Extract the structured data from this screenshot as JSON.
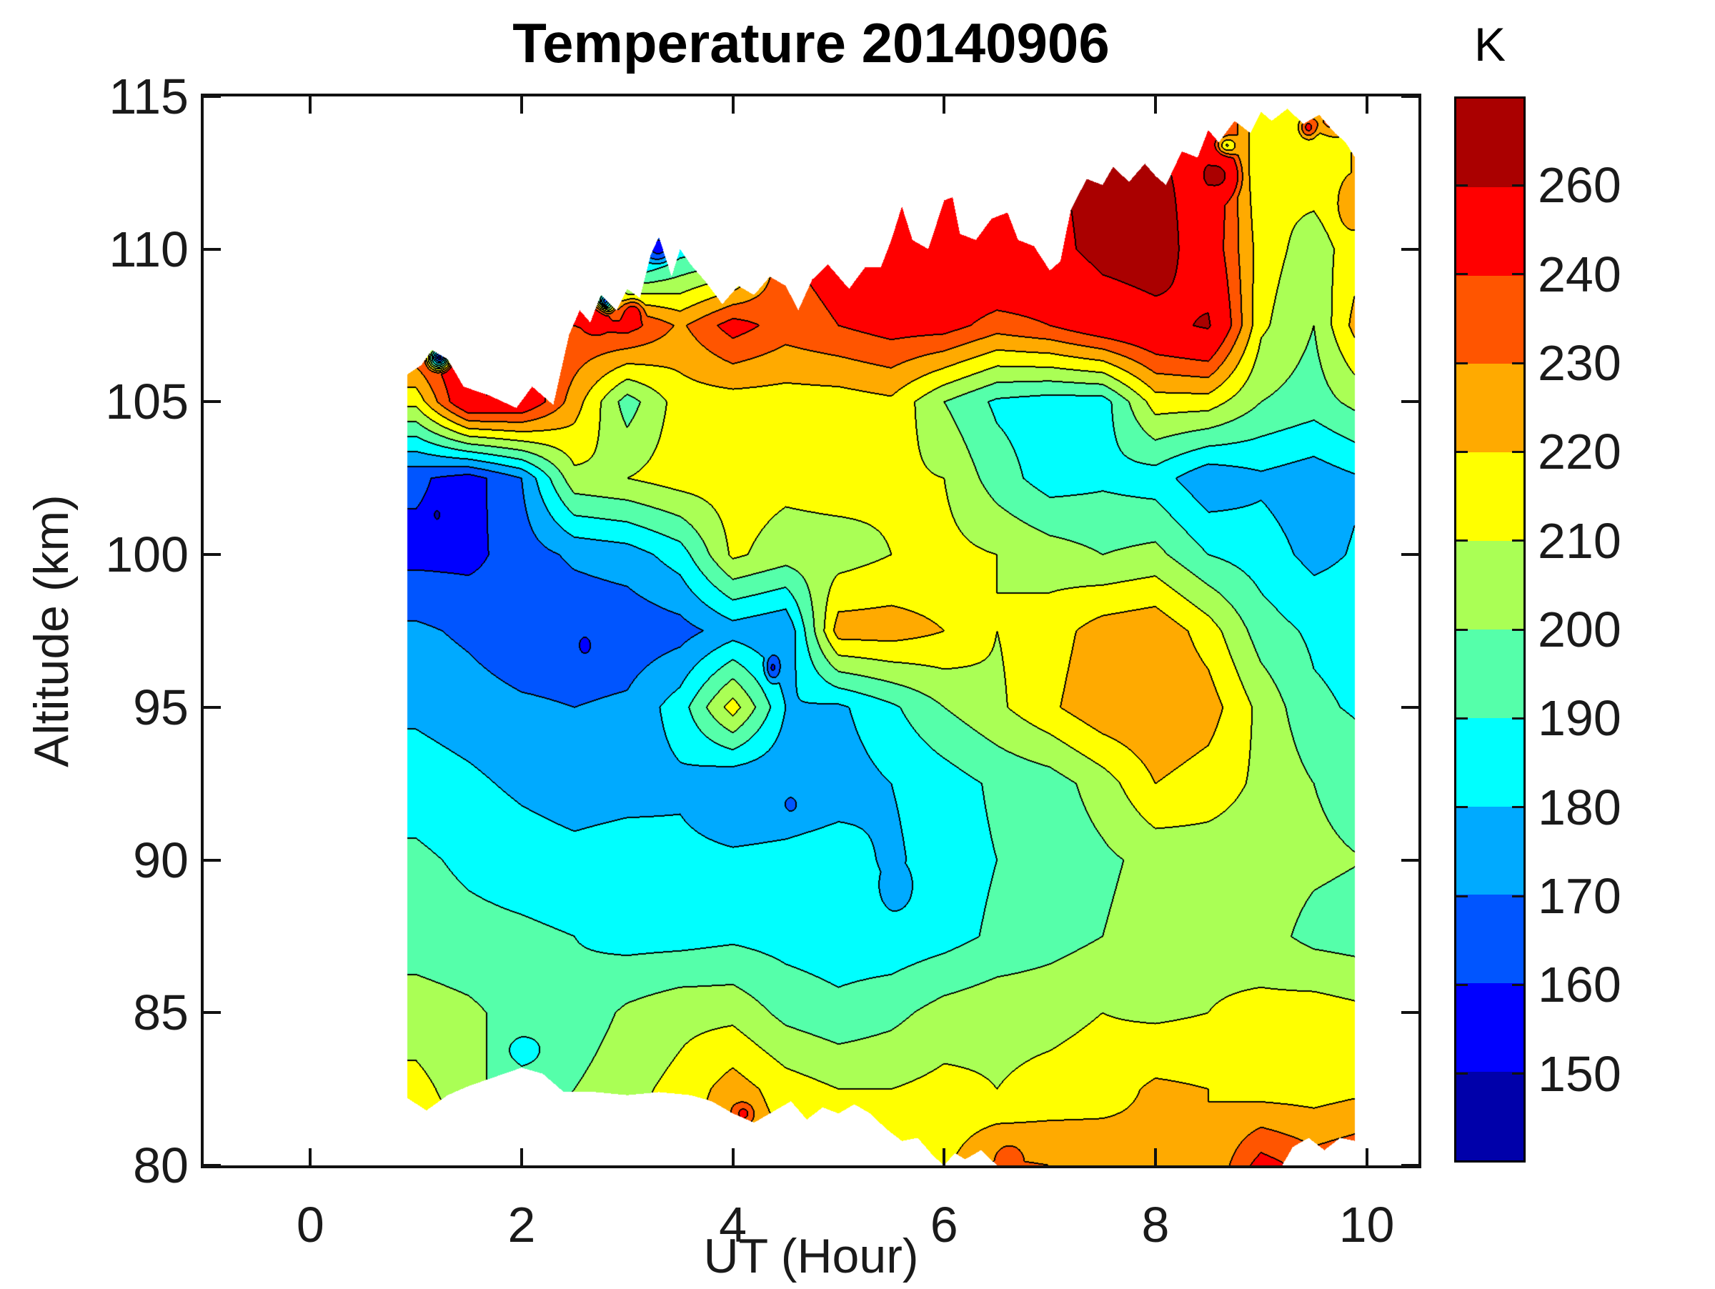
{
  "title": "Temperature 20140906",
  "axes": {
    "x": {
      "label": "UT (Hour)",
      "ticks": [
        0,
        2,
        4,
        6,
        8,
        10
      ]
    },
    "y": {
      "label": "Altitude (km)",
      "ticks": [
        80,
        85,
        90,
        95,
        100,
        105,
        110,
        115
      ]
    }
  },
  "colorbar": {
    "unit_label": "K",
    "labels_bottom_up": [
      "150",
      "160",
      "170",
      "180",
      "190",
      "200",
      "210",
      "220",
      "230",
      "240",
      "260"
    ]
  },
  "chart_data": {
    "type": "filled_contour",
    "title": "Temperature 20140906",
    "xlabel": "UT (Hour)",
    "ylabel": "Altitude (km)",
    "unit": "K",
    "xlim": [
      -1.01,
      10.49
    ],
    "ylim": [
      80,
      115
    ],
    "x_data_range": [
      0.92,
      9.89
    ],
    "levels_K": [
      150,
      160,
      170,
      180,
      190,
      200,
      210,
      220,
      230,
      240,
      260
    ],
    "palette_bottom_up": [
      "#0000AA",
      "#0000FF",
      "#0055FF",
      "#00AAFF",
      "#00FFFF",
      "#55FFAA",
      "#AAFF55",
      "#FFFF00",
      "#FFAA00",
      "#FF5500",
      "#FF0000",
      "#AA0000"
    ],
    "contour_line_color": "#000000",
    "x_hours": [
      1,
      1.5,
      2,
      2.5,
      3,
      3.5,
      4,
      4.5,
      5,
      5.5,
      6,
      6.5,
      7,
      7.5,
      8,
      8.5,
      9,
      9.5,
      10
    ],
    "altitudes_km": [
      80,
      82.5,
      85,
      87.5,
      90,
      92.5,
      95,
      97.5,
      100,
      102.5,
      105,
      107.5,
      110,
      112.5,
      115
    ],
    "temperature_K": [
      [
        215,
        215,
        215,
        212,
        213,
        215,
        235,
        220,
        215,
        215,
        218,
        232,
        230,
        228,
        222,
        220,
        245,
        235,
        240
      ],
      [
        213,
        205,
        190,
        200,
        207,
        213,
        225,
        215,
        210,
        210,
        213,
        210,
        213,
        215,
        222,
        220,
        215,
        215,
        218
      ],
      [
        205,
        202,
        196,
        193,
        202,
        207,
        207,
        197,
        193,
        197,
        204,
        207,
        207,
        210,
        208,
        210,
        213,
        215,
        212
      ],
      [
        195,
        193,
        192,
        190,
        186,
        186,
        188,
        186,
        184,
        183,
        186,
        192,
        196,
        200,
        205,
        207,
        204,
        197,
        195
      ],
      [
        192,
        188,
        185,
        183,
        185,
        183,
        182,
        183,
        185,
        178,
        185,
        190,
        193,
        198,
        203,
        205,
        205,
        202,
        200
      ],
      [
        185,
        182,
        178,
        175,
        176,
        178,
        170,
        172,
        175,
        180,
        185,
        192,
        195,
        205,
        220,
        215,
        208,
        200,
        195
      ],
      [
        178,
        175,
        172,
        170,
        172,
        185,
        215,
        180,
        178,
        188,
        200,
        208,
        218,
        228,
        230,
        225,
        207,
        192,
        188
      ],
      [
        172,
        168,
        162,
        162,
        163,
        166,
        175,
        170,
        225,
        225,
        220,
        210,
        215,
        225,
        228,
        215,
        195,
        188,
        186
      ],
      [
        157,
        157,
        165,
        172,
        175,
        185,
        212,
        205,
        205,
        210,
        213,
        210,
        205,
        200,
        203,
        190,
        185,
        177,
        182
      ],
      [
        162,
        155,
        170,
        207,
        210,
        215,
        215,
        213,
        215,
        212,
        210,
        195,
        185,
        188,
        185,
        172,
        178,
        174,
        180
      ],
      [
        213,
        255,
        252,
        225,
        195,
        215,
        215,
        215,
        215,
        218,
        200,
        188,
        185,
        185,
        215,
        215,
        200,
        195,
        205
      ],
      [
        250,
        255,
        240,
        240,
        245,
        228,
        245,
        235,
        240,
        245,
        245,
        235,
        240,
        250,
        255,
        262,
        212,
        200,
        230
      ],
      [
        240,
        245,
        245,
        250,
        160,
        185,
        190,
        240,
        245,
        250,
        255,
        260,
        255,
        265,
        268,
        250,
        215,
        205,
        218
      ],
      [
        245,
        245,
        245,
        245,
        245,
        250,
        250,
        250,
        252,
        255,
        258,
        260,
        258,
        265,
        262,
        255,
        210,
        215,
        222
      ],
      [
        245,
        245,
        245,
        245,
        245,
        250,
        250,
        250,
        252,
        255,
        258,
        260,
        258,
        265,
        262,
        255,
        210,
        215,
        222
      ]
    ],
    "top_boundary_hour_alt": [
      [
        0.92,
        105.9
      ],
      [
        1.05,
        106.2
      ],
      [
        1.15,
        106.7
      ],
      [
        1.3,
        106.4
      ],
      [
        1.45,
        105.5
      ],
      [
        1.7,
        105.2
      ],
      [
        1.95,
        104.8
      ],
      [
        2.1,
        105.5
      ],
      [
        2.3,
        104.9
      ],
      [
        2.45,
        107.2
      ],
      [
        2.55,
        108.0
      ],
      [
        2.65,
        107.6
      ],
      [
        2.75,
        108.5
      ],
      [
        2.9,
        108.0
      ],
      [
        3.0,
        108.7
      ],
      [
        3.12,
        108.4
      ],
      [
        3.22,
        109.8
      ],
      [
        3.3,
        110.4
      ],
      [
        3.42,
        109.1
      ],
      [
        3.5,
        110.0
      ],
      [
        3.6,
        109.5
      ],
      [
        3.75,
        108.9
      ],
      [
        3.9,
        108.2
      ],
      [
        4.05,
        108.8
      ],
      [
        4.2,
        108.5
      ],
      [
        4.35,
        109.1
      ],
      [
        4.5,
        108.8
      ],
      [
        4.62,
        108.0
      ],
      [
        4.75,
        109.0
      ],
      [
        4.9,
        109.5
      ],
      [
        5.0,
        109.1
      ],
      [
        5.1,
        108.7
      ],
      [
        5.25,
        109.4
      ],
      [
        5.4,
        109.4
      ],
      [
        5.5,
        110.3
      ],
      [
        5.6,
        111.4
      ],
      [
        5.7,
        110.3
      ],
      [
        5.85,
        110.0
      ],
      [
        6.0,
        111.6
      ],
      [
        6.08,
        111.7
      ],
      [
        6.15,
        110.5
      ],
      [
        6.3,
        110.3
      ],
      [
        6.45,
        111.0
      ],
      [
        6.6,
        111.2
      ],
      [
        6.7,
        110.3
      ],
      [
        6.85,
        110.1
      ],
      [
        7.0,
        109.3
      ],
      [
        7.1,
        109.6
      ],
      [
        7.2,
        111.3
      ],
      [
        7.35,
        112.3
      ],
      [
        7.5,
        112.1
      ],
      [
        7.6,
        112.7
      ],
      [
        7.75,
        112.2
      ],
      [
        7.9,
        112.8
      ],
      [
        8.0,
        112.4
      ],
      [
        8.1,
        112.1
      ],
      [
        8.25,
        113.2
      ],
      [
        8.4,
        113.0
      ],
      [
        8.5,
        113.9
      ],
      [
        8.6,
        113.5
      ],
      [
        8.75,
        114.2
      ],
      [
        8.9,
        113.8
      ],
      [
        9.0,
        114.5
      ],
      [
        9.1,
        114.2
      ],
      [
        9.25,
        114.6
      ],
      [
        9.4,
        114.1
      ],
      [
        9.55,
        114.4
      ],
      [
        9.7,
        113.8
      ],
      [
        9.8,
        113.5
      ],
      [
        9.89,
        113.0
      ]
    ],
    "bottom_boundary_hour_alt": [
      [
        0.92,
        82.2
      ],
      [
        1.1,
        81.8
      ],
      [
        1.3,
        82.3
      ],
      [
        1.5,
        82.6
      ],
      [
        1.75,
        82.9
      ],
      [
        2.0,
        83.2
      ],
      [
        2.2,
        83.0
      ],
      [
        2.4,
        82.4
      ],
      [
        2.7,
        82.4
      ],
      [
        3.0,
        82.3
      ],
      [
        3.3,
        82.4
      ],
      [
        3.6,
        82.3
      ],
      [
        3.8,
        82.1
      ],
      [
        4.0,
        81.7
      ],
      [
        4.2,
        81.4
      ],
      [
        4.4,
        81.8
      ],
      [
        4.55,
        82.1
      ],
      [
        4.7,
        81.5
      ],
      [
        4.85,
        81.9
      ],
      [
        5.0,
        81.7
      ],
      [
        5.15,
        82.0
      ],
      [
        5.3,
        81.7
      ],
      [
        5.45,
        81.2
      ],
      [
        5.6,
        80.8
      ],
      [
        5.75,
        80.9
      ],
      [
        5.9,
        80.3
      ],
      [
        6.0,
        80.0
      ],
      [
        6.1,
        80.4
      ],
      [
        6.2,
        80.2
      ],
      [
        6.35,
        80.5
      ],
      [
        6.5,
        80.0
      ],
      [
        6.8,
        80.0
      ],
      [
        9.2,
        80.0
      ],
      [
        9.3,
        80.6
      ],
      [
        9.45,
        80.9
      ],
      [
        9.6,
        80.5
      ],
      [
        9.75,
        80.9
      ],
      [
        9.89,
        80.8
      ]
    ],
    "local_extrema_spots": [
      [
        1.22,
        106.45,
        148,
        0.15,
        0.55
      ],
      [
        2.79,
        108.3,
        162,
        0.12,
        0.5
      ],
      [
        3.3,
        110.1,
        150,
        0.18,
        0.7
      ],
      [
        1.75,
        105.6,
        268,
        0.3,
        0.75
      ],
      [
        2.7,
        107.7,
        252,
        0.16,
        0.6
      ],
      [
        3.05,
        107.9,
        252,
        0.14,
        0.55
      ],
      [
        5.55,
        89.1,
        170,
        0.18,
        0.9
      ],
      [
        2.02,
        83.8,
        185,
        0.28,
        0.75
      ],
      [
        8.6,
        112.4,
        266,
        0.25,
        1.0
      ],
      [
        9.85,
        111.4,
        230,
        0.18,
        1.1
      ],
      [
        4.1,
        81.7,
        246,
        0.14,
        0.5
      ],
      [
        6.62,
        80.3,
        238,
        0.15,
        0.5
      ],
      [
        8.68,
        113.4,
        208,
        0.15,
        0.45
      ],
      [
        2.6,
        97.0,
        156,
        0.1,
        0.5
      ],
      [
        4.38,
        96.3,
        156,
        0.1,
        0.6
      ],
      [
        4.55,
        91.8,
        166,
        0.12,
        0.5
      ],
      [
        1.2,
        101.3,
        148,
        0.12,
        0.7
      ],
      [
        6.05,
        111.3,
        252,
        0.08,
        0.6
      ],
      [
        9.45,
        114.0,
        248,
        0.12,
        0.5
      ],
      [
        9.7,
        114.2,
        238,
        0.3,
        0.6
      ]
    ]
  }
}
